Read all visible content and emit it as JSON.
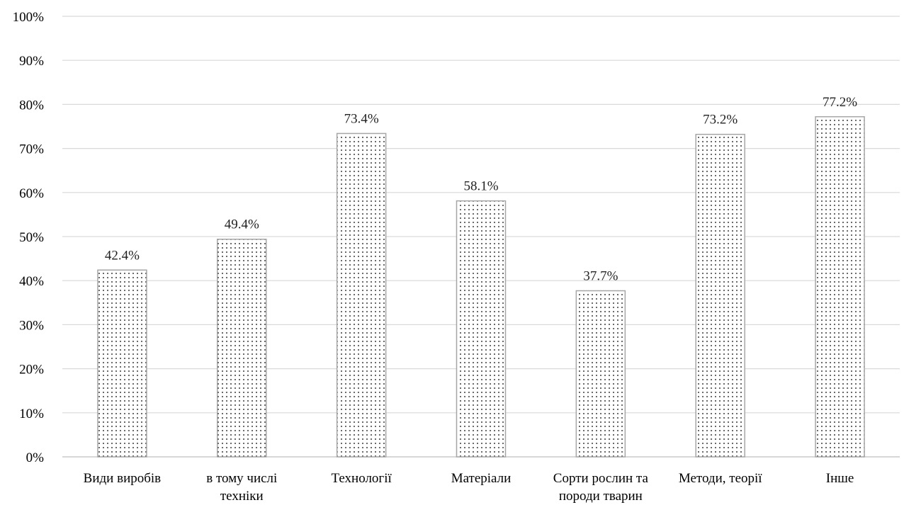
{
  "chart_data": {
    "type": "bar",
    "categories": [
      [
        "Види виробів"
      ],
      [
        "в тому числі",
        "техніки"
      ],
      [
        "Технології"
      ],
      [
        "Матеріали"
      ],
      [
        "Сорти рослин та",
        "породи тварин"
      ],
      [
        "Методи, теорії"
      ],
      [
        "Інше"
      ]
    ],
    "values": [
      42.4,
      49.4,
      73.4,
      58.1,
      37.7,
      73.2,
      77.2
    ],
    "data_labels": [
      "42.4%",
      "49.4%",
      "73.4%",
      "58.1%",
      "37.7%",
      "73.2%",
      "77.2%"
    ],
    "y_ticks": [
      "0%",
      "10%",
      "20%",
      "30%",
      "40%",
      "50%",
      "60%",
      "70%",
      "80%",
      "90%",
      "100%"
    ],
    "ylim": [
      0,
      100
    ],
    "grid": true,
    "bar_fill": "dotted pattern",
    "colors": {
      "bar_fill": "#ffffff",
      "dot": "#000000",
      "bar_border": "#a6a6a6",
      "grid": "#d9d9d9"
    }
  }
}
